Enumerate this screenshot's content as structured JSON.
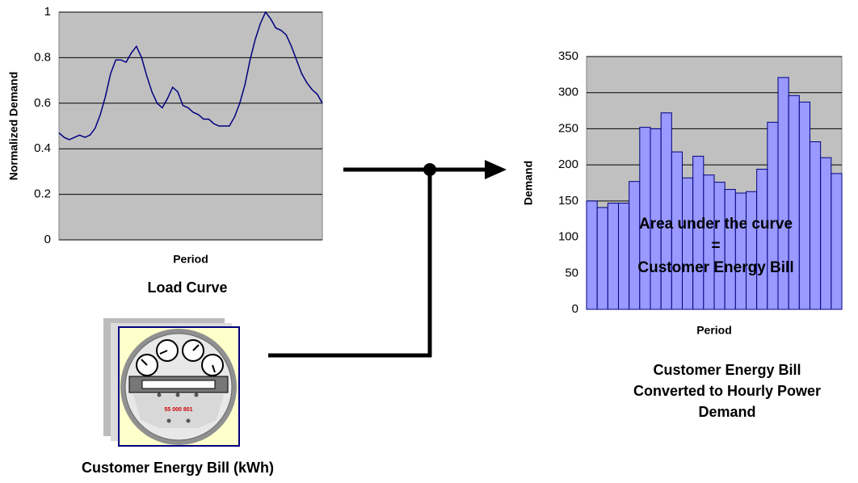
{
  "chart_data": [
    {
      "type": "line",
      "ylabel": "Normalized Demand",
      "xlabel": "Period",
      "color": "#000080",
      "values": [
        0.47,
        0.45,
        0.44,
        0.45,
        0.46,
        0.45,
        0.46,
        0.49,
        0.55,
        0.63,
        0.73,
        0.79,
        0.79,
        0.78,
        0.82,
        0.85,
        0.8,
        0.72,
        0.65,
        0.6,
        0.58,
        0.62,
        0.67,
        0.65,
        0.59,
        0.58,
        0.56,
        0.55,
        0.53,
        0.53,
        0.51,
        0.5,
        0.5,
        0.5,
        0.54,
        0.6,
        0.68,
        0.79,
        0.88,
        0.95,
        1.0,
        0.97,
        0.93,
        0.92,
        0.9,
        0.85,
        0.79,
        0.73,
        0.69,
        0.66,
        0.64,
        0.6
      ],
      "ylim": [
        0,
        1
      ],
      "yticks": [
        0,
        0.2,
        0.4,
        0.6,
        0.8,
        1
      ],
      "grid": true,
      "background": "#c0c0c0"
    },
    {
      "type": "bar",
      "ylabel": "Demand",
      "xlabel": "Period",
      "color": "#9999ff",
      "values": [
        150,
        141,
        147,
        147,
        177,
        252,
        250,
        272,
        218,
        182,
        212,
        186,
        176,
        166,
        161,
        163,
        194,
        259,
        321,
        296,
        287,
        232,
        210,
        188
      ],
      "ylim": [
        0,
        350
      ],
      "yticks": [
        0,
        50,
        100,
        150,
        200,
        250,
        300,
        350
      ],
      "grid": true,
      "background": "#c0c0c0",
      "annotations": [
        "Area under the curve",
        "=",
        "Customer Energy Bill"
      ]
    }
  ],
  "captions": {
    "load_curve": "Load Curve",
    "energy_bill": "Customer Energy Bill (kWh)",
    "converted": [
      "Customer Energy Bill",
      "Converted to Hourly Power",
      "Demand"
    ]
  },
  "meter": {
    "reading": "55 000 801"
  }
}
